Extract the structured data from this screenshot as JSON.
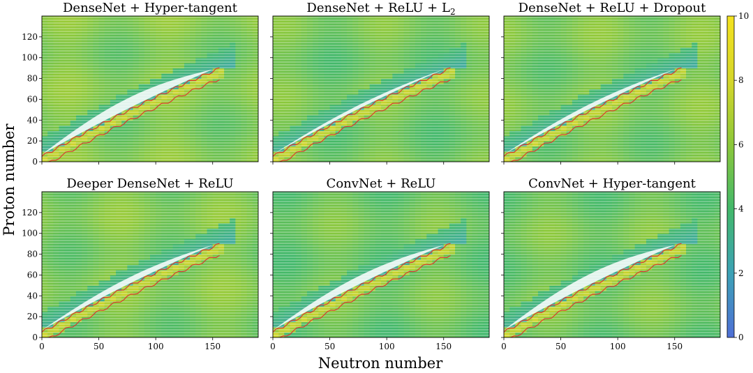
{
  "chart_data": {
    "type": "heatmap",
    "xlabel": "Neutron number",
    "ylabel": "Proton number",
    "xlim": [
      0,
      190
    ],
    "ylim": [
      0,
      140
    ],
    "xticks": [
      0,
      50,
      100,
      150
    ],
    "yticks": [
      0,
      20,
      40,
      60,
      80,
      100,
      120
    ],
    "colorbar": {
      "range": [
        0,
        10
      ],
      "ticks": [
        0,
        2,
        4,
        6,
        8,
        10
      ],
      "colors": [
        "#4f6fd6",
        "#3ca2b6",
        "#42b86a",
        "#8cc83a",
        "#d5d62a",
        "#f4e21f"
      ]
    },
    "dripline_color": "#e0302a",
    "panels": [
      {
        "title": "DenseNet + Hyper-tangent",
        "background_value": 5.4,
        "white_band": 1.0
      },
      {
        "title": "DenseNet + ReLU + L",
        "title_subscript": "2",
        "background_value": 5.0,
        "white_band": 0.35
      },
      {
        "title": "DenseNet + ReLU + Dropout",
        "background_value": 5.2,
        "white_band": 0.45
      },
      {
        "title": "Deeper DenseNet + ReLU",
        "background_value": 5.3,
        "white_band": 0.6
      },
      {
        "title": "ConvNet + ReLU",
        "background_value": 4.9,
        "white_band": 0.8
      },
      {
        "title": "ConvNet + Hyper-tangent",
        "background_value": 5.0,
        "white_band": 1.0
      }
    ]
  }
}
